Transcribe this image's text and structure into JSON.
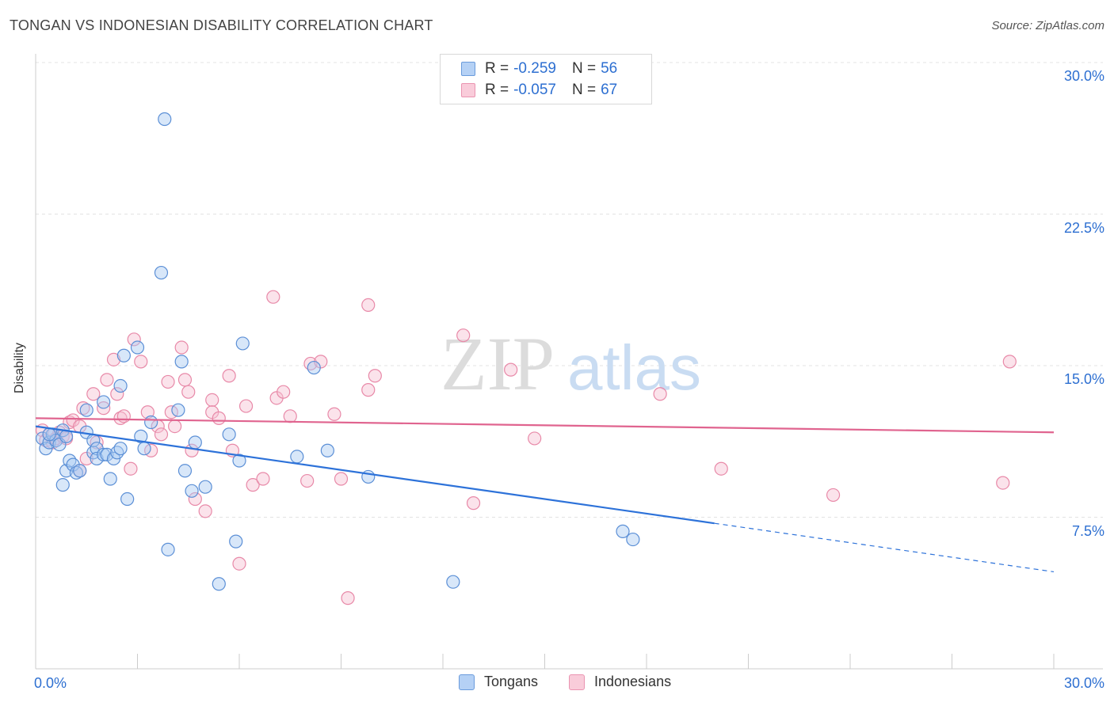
{
  "header": {
    "title": "TONGAN VS INDONESIAN DISABILITY CORRELATION CHART",
    "source": "Source: ZipAtlas.com"
  },
  "legend": {
    "tongans": {
      "r_label": "R =",
      "r_value": "-0.259",
      "n_label": "N =",
      "n_value": "56"
    },
    "indonesians": {
      "r_label": "R =",
      "r_value": "-0.057",
      "n_label": "N =",
      "n_value": "67"
    }
  },
  "bottom_legend": {
    "tongans": "Tongans",
    "indonesians": "Indonesians"
  },
  "axes": {
    "ylabel": "Disability",
    "x_min_label": "0.0%",
    "x_max_label": "30.0%",
    "y_ticks": [
      "30.0%",
      "22.5%",
      "15.0%",
      "7.5%"
    ]
  },
  "watermark": {
    "zip": "ZIP",
    "atlas": "atlas"
  },
  "colors": {
    "tongan_fill": "#a9c9f2",
    "tongan_stroke": "#5b8fd6",
    "tongan_line": "#2d72d9",
    "indonesian_fill": "#f7c2d2",
    "indonesian_stroke": "#e889a8",
    "indonesian_line": "#e0648f",
    "tick_label": "#2d6fd1",
    "grid": "#e3e3e3"
  },
  "chart_data": {
    "type": "scatter",
    "xlim": [
      0,
      30
    ],
    "ylim": [
      0,
      30
    ],
    "grid": true,
    "legend_placement": "top-center",
    "series": [
      {
        "name": "Tongans",
        "r": -0.259,
        "n": 56,
        "trend": {
          "x": [
            0,
            20
          ],
          "y": [
            12.0,
            7.2
          ],
          "dashed_to": [
            30,
            4.8
          ]
        },
        "points": [
          [
            0.2,
            11.4
          ],
          [
            0.3,
            10.9
          ],
          [
            0.4,
            11.2
          ],
          [
            0.5,
            11.6
          ],
          [
            0.6,
            11.3
          ],
          [
            0.7,
            11.1
          ],
          [
            0.8,
            11.8
          ],
          [
            0.9,
            11.5
          ],
          [
            0.8,
            9.1
          ],
          [
            0.9,
            9.8
          ],
          [
            1.0,
            10.3
          ],
          [
            1.1,
            10.1
          ],
          [
            1.2,
            9.7
          ],
          [
            1.3,
            9.8
          ],
          [
            1.5,
            11.7
          ],
          [
            1.5,
            12.8
          ],
          [
            1.7,
            10.7
          ],
          [
            1.7,
            11.3
          ],
          [
            1.8,
            10.9
          ],
          [
            1.8,
            10.4
          ],
          [
            2.0,
            13.2
          ],
          [
            2.0,
            10.6
          ],
          [
            2.1,
            10.6
          ],
          [
            2.2,
            9.4
          ],
          [
            2.3,
            10.4
          ],
          [
            2.4,
            10.7
          ],
          [
            2.5,
            14.0
          ],
          [
            2.5,
            10.9
          ],
          [
            2.6,
            15.5
          ],
          [
            2.7,
            8.4
          ],
          [
            3.0,
            15.9
          ],
          [
            3.1,
            11.5
          ],
          [
            3.2,
            10.9
          ],
          [
            3.4,
            12.2
          ],
          [
            3.7,
            19.6
          ],
          [
            3.8,
            27.2
          ],
          [
            3.9,
            5.9
          ],
          [
            4.2,
            12.8
          ],
          [
            4.3,
            15.2
          ],
          [
            4.4,
            9.8
          ],
          [
            4.6,
            8.8
          ],
          [
            4.7,
            11.2
          ],
          [
            5.0,
            9.0
          ],
          [
            5.4,
            4.2
          ],
          [
            5.7,
            11.6
          ],
          [
            5.9,
            6.3
          ],
          [
            6.0,
            10.3
          ],
          [
            6.1,
            16.1
          ],
          [
            7.7,
            10.5
          ],
          [
            8.2,
            14.9
          ],
          [
            8.6,
            10.8
          ],
          [
            9.8,
            9.5
          ],
          [
            12.3,
            4.3
          ],
          [
            17.3,
            6.8
          ],
          [
            17.6,
            6.4
          ],
          [
            0.4,
            11.6
          ]
        ]
      },
      {
        "name": "Indonesians",
        "r": -0.057,
        "n": 67,
        "trend": {
          "x": [
            0,
            30
          ],
          "y": [
            12.4,
            11.7
          ]
        },
        "points": [
          [
            0.2,
            11.8
          ],
          [
            0.3,
            11.3
          ],
          [
            0.4,
            11.6
          ],
          [
            0.5,
            11.2
          ],
          [
            0.6,
            11.4
          ],
          [
            0.7,
            11.7
          ],
          [
            0.8,
            11.5
          ],
          [
            0.9,
            11.4
          ],
          [
            1.0,
            12.2
          ],
          [
            1.1,
            12.3
          ],
          [
            1.3,
            12.0
          ],
          [
            1.3,
            9.8
          ],
          [
            1.4,
            12.9
          ],
          [
            1.5,
            10.4
          ],
          [
            1.7,
            13.6
          ],
          [
            1.8,
            11.2
          ],
          [
            2.0,
            12.9
          ],
          [
            2.1,
            14.3
          ],
          [
            2.3,
            15.3
          ],
          [
            2.4,
            13.6
          ],
          [
            2.5,
            12.4
          ],
          [
            2.6,
            12.5
          ],
          [
            2.8,
            9.9
          ],
          [
            2.9,
            16.3
          ],
          [
            3.1,
            15.2
          ],
          [
            3.3,
            12.7
          ],
          [
            3.4,
            10.8
          ],
          [
            3.6,
            12.0
          ],
          [
            3.7,
            11.6
          ],
          [
            3.9,
            14.2
          ],
          [
            4.0,
            12.7
          ],
          [
            4.1,
            12.0
          ],
          [
            4.3,
            15.9
          ],
          [
            4.4,
            14.3
          ],
          [
            4.5,
            13.7
          ],
          [
            4.6,
            10.8
          ],
          [
            4.7,
            8.4
          ],
          [
            5.0,
            7.8
          ],
          [
            5.2,
            13.3
          ],
          [
            5.2,
            12.7
          ],
          [
            5.4,
            12.4
          ],
          [
            5.7,
            14.5
          ],
          [
            5.8,
            10.8
          ],
          [
            6.0,
            5.2
          ],
          [
            6.2,
            13.0
          ],
          [
            6.4,
            9.1
          ],
          [
            6.7,
            9.4
          ],
          [
            7.0,
            18.4
          ],
          [
            7.1,
            13.4
          ],
          [
            7.3,
            13.7
          ],
          [
            7.5,
            12.5
          ],
          [
            8.0,
            9.3
          ],
          [
            8.1,
            15.1
          ],
          [
            8.4,
            15.2
          ],
          [
            8.8,
            12.6
          ],
          [
            9.0,
            9.4
          ],
          [
            9.2,
            3.5
          ],
          [
            9.8,
            18.0
          ],
          [
            9.8,
            13.8
          ],
          [
            10.0,
            14.5
          ],
          [
            12.6,
            16.5
          ],
          [
            12.9,
            8.2
          ],
          [
            14.0,
            14.8
          ],
          [
            14.7,
            11.4
          ],
          [
            18.4,
            13.6
          ],
          [
            20.2,
            9.9
          ],
          [
            23.5,
            8.6
          ]
        ]
      },
      {
        "name": "Indonesians (extra)",
        "points": [
          [
            28.5,
            9.2
          ],
          [
            28.7,
            15.2
          ]
        ]
      }
    ]
  }
}
